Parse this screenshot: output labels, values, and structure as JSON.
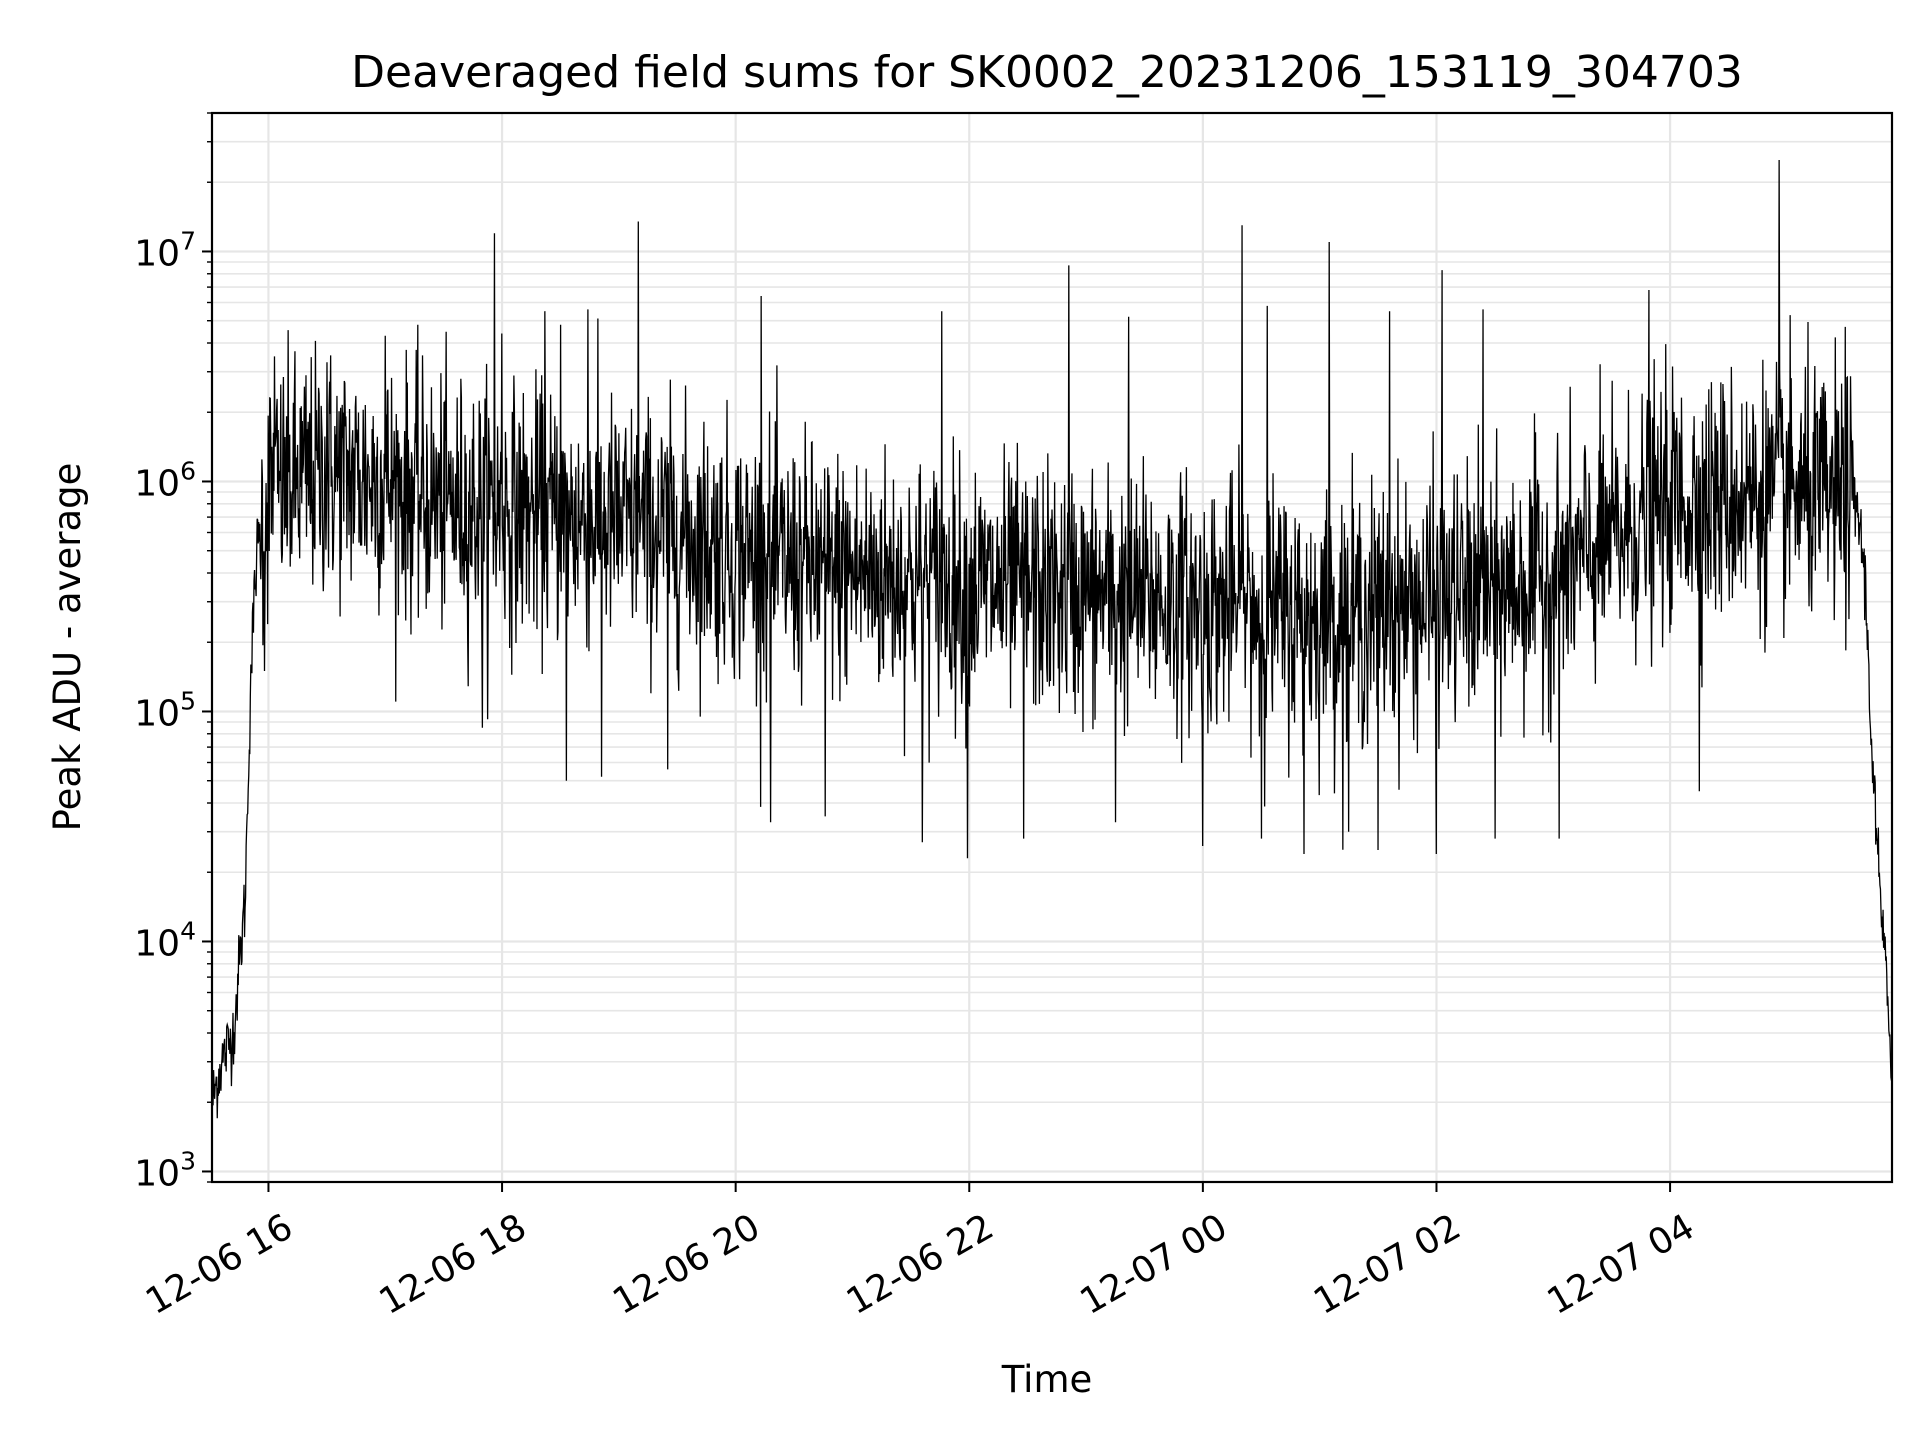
{
  "chart_data": {
    "type": "line",
    "title": "Deaveraged field sums for SK0002_20231206_153119_304703",
    "xlabel": "Time",
    "ylabel": "Peak ADU - average",
    "yscale": "log",
    "xlim": [
      "2023-12-06 15:31",
      "2023-12-07 05:54"
    ],
    "ylim": [
      900,
      40000000
    ],
    "grid": true,
    "grid_color": "#e6e6e6",
    "line_color": "#000000",
    "x_ticks": [
      {
        "value": "2023-12-06 16:00",
        "label": "12-06 16"
      },
      {
        "value": "2023-12-06 18:00",
        "label": "12-06 18"
      },
      {
        "value": "2023-12-06 20:00",
        "label": "12-06 20"
      },
      {
        "value": "2023-12-06 22:00",
        "label": "12-06 22"
      },
      {
        "value": "2023-12-07 00:00",
        "label": "12-07 00"
      },
      {
        "value": "2023-12-07 02:00",
        "label": "12-07 02"
      },
      {
        "value": "2023-12-07 04:00",
        "label": "12-07 04"
      }
    ],
    "y_ticks": [
      {
        "value": 1000,
        "base": "10",
        "exp": "3"
      },
      {
        "value": 10000,
        "base": "10",
        "exp": "4"
      },
      {
        "value": 100000,
        "base": "10",
        "exp": "5"
      },
      {
        "value": 1000000,
        "base": "10",
        "exp": "6"
      },
      {
        "value": 10000000,
        "base": "10",
        "exp": "7"
      }
    ],
    "series": [
      {
        "trend": [
          {
            "x": "2023-12-06 15:31",
            "y": 2000
          },
          {
            "x": "2023-12-06 15:36",
            "y": 3000
          },
          {
            "x": "2023-12-06 15:42",
            "y": 4000
          },
          {
            "x": "2023-12-06 15:48",
            "y": 15000
          },
          {
            "x": "2023-12-06 15:51",
            "y": 150000
          },
          {
            "x": "2023-12-06 15:54",
            "y": 500000
          },
          {
            "x": "2023-12-06 16:00",
            "y": 900000
          },
          {
            "x": "2023-12-06 16:30",
            "y": 1100000
          },
          {
            "x": "2023-12-06 17:00",
            "y": 1000000
          },
          {
            "x": "2023-12-06 17:30",
            "y": 800000
          },
          {
            "x": "2023-12-06 18:00",
            "y": 750000
          },
          {
            "x": "2023-12-06 18:30",
            "y": 700000
          },
          {
            "x": "2023-12-06 19:00",
            "y": 650000
          },
          {
            "x": "2023-12-06 19:30",
            "y": 600000
          },
          {
            "x": "2023-12-06 20:00",
            "y": 500000
          },
          {
            "x": "2023-12-06 20:30",
            "y": 430000
          },
          {
            "x": "2023-12-06 21:00",
            "y": 400000
          },
          {
            "x": "2023-12-06 22:00",
            "y": 350000
          },
          {
            "x": "2023-12-07 00:00",
            "y": 300000
          },
          {
            "x": "2023-12-07 01:00",
            "y": 250000
          },
          {
            "x": "2023-12-07 02:00",
            "y": 300000
          },
          {
            "x": "2023-12-07 03:00",
            "y": 380000
          },
          {
            "x": "2023-12-07 03:30",
            "y": 550000
          },
          {
            "x": "2023-12-07 04:00",
            "y": 800000
          },
          {
            "x": "2023-12-07 05:00",
            "y": 900000
          },
          {
            "x": "2023-12-07 05:36",
            "y": 800000
          },
          {
            "x": "2023-12-07 05:40",
            "y": 400000
          },
          {
            "x": "2023-12-07 05:44",
            "y": 60000
          },
          {
            "x": "2023-12-07 05:48",
            "y": 15000
          },
          {
            "x": "2023-12-07 05:54",
            "y": 3000
          }
        ],
        "peaks": [
          {
            "x": "2023-12-06 16:03",
            "y": 3500000
          },
          {
            "x": "2023-12-06 16:30",
            "y": 3300000
          },
          {
            "x": "2023-12-06 17:00",
            "y": 4300000
          },
          {
            "x": "2023-12-06 17:56",
            "y": 12000000
          },
          {
            "x": "2023-12-06 18:00",
            "y": 4400000
          },
          {
            "x": "2023-12-06 18:22",
            "y": 5500000
          },
          {
            "x": "2023-12-06 18:30",
            "y": 4800000
          },
          {
            "x": "2023-12-06 18:44",
            "y": 5600000
          },
          {
            "x": "2023-12-06 19:10",
            "y": 13500000
          },
          {
            "x": "2023-12-06 20:13",
            "y": 6400000
          },
          {
            "x": "2023-12-06 21:46",
            "y": 5500000
          },
          {
            "x": "2023-12-06 22:51",
            "y": 8700000
          },
          {
            "x": "2023-12-06 23:22",
            "y": 5200000
          },
          {
            "x": "2023-12-07 00:20",
            "y": 13000000
          },
          {
            "x": "2023-12-07 00:33",
            "y": 5800000
          },
          {
            "x": "2023-12-07 01:05",
            "y": 11000000
          },
          {
            "x": "2023-12-07 01:36",
            "y": 5500000
          },
          {
            "x": "2023-12-07 02:03",
            "y": 8300000
          },
          {
            "x": "2023-12-07 02:24",
            "y": 5600000
          },
          {
            "x": "2023-12-07 03:49",
            "y": 6800000
          },
          {
            "x": "2023-12-07 04:56",
            "y": 25000000
          },
          {
            "x": "2023-12-07 05:30",
            "y": 4700000
          }
        ],
        "dips": [
          {
            "x": "2023-12-06 15:58",
            "y": 150000
          },
          {
            "x": "2023-12-06 17:50",
            "y": 85000
          },
          {
            "x": "2023-12-06 18:33",
            "y": 50000
          },
          {
            "x": "2023-12-06 18:51",
            "y": 52000
          },
          {
            "x": "2023-12-06 19:25",
            "y": 56000
          },
          {
            "x": "2023-12-06 20:18",
            "y": 33000
          },
          {
            "x": "2023-12-06 20:46",
            "y": 35000
          },
          {
            "x": "2023-12-06 21:36",
            "y": 27000
          },
          {
            "x": "2023-12-06 21:59",
            "y": 23000
          },
          {
            "x": "2023-12-06 22:28",
            "y": 28000
          },
          {
            "x": "2023-12-06 23:15",
            "y": 33000
          },
          {
            "x": "2023-12-07 00:00",
            "y": 26000
          },
          {
            "x": "2023-12-07 00:30",
            "y": 28000
          },
          {
            "x": "2023-12-07 00:52",
            "y": 24000
          },
          {
            "x": "2023-12-07 01:15",
            "y": 30000
          },
          {
            "x": "2023-12-07 01:30",
            "y": 25000
          },
          {
            "x": "2023-12-07 02:00",
            "y": 24000
          },
          {
            "x": "2023-12-07 02:30",
            "y": 28000
          },
          {
            "x": "2023-12-07 03:03",
            "y": 28000
          },
          {
            "x": "2023-12-07 04:15",
            "y": 45000
          }
        ]
      }
    ]
  }
}
